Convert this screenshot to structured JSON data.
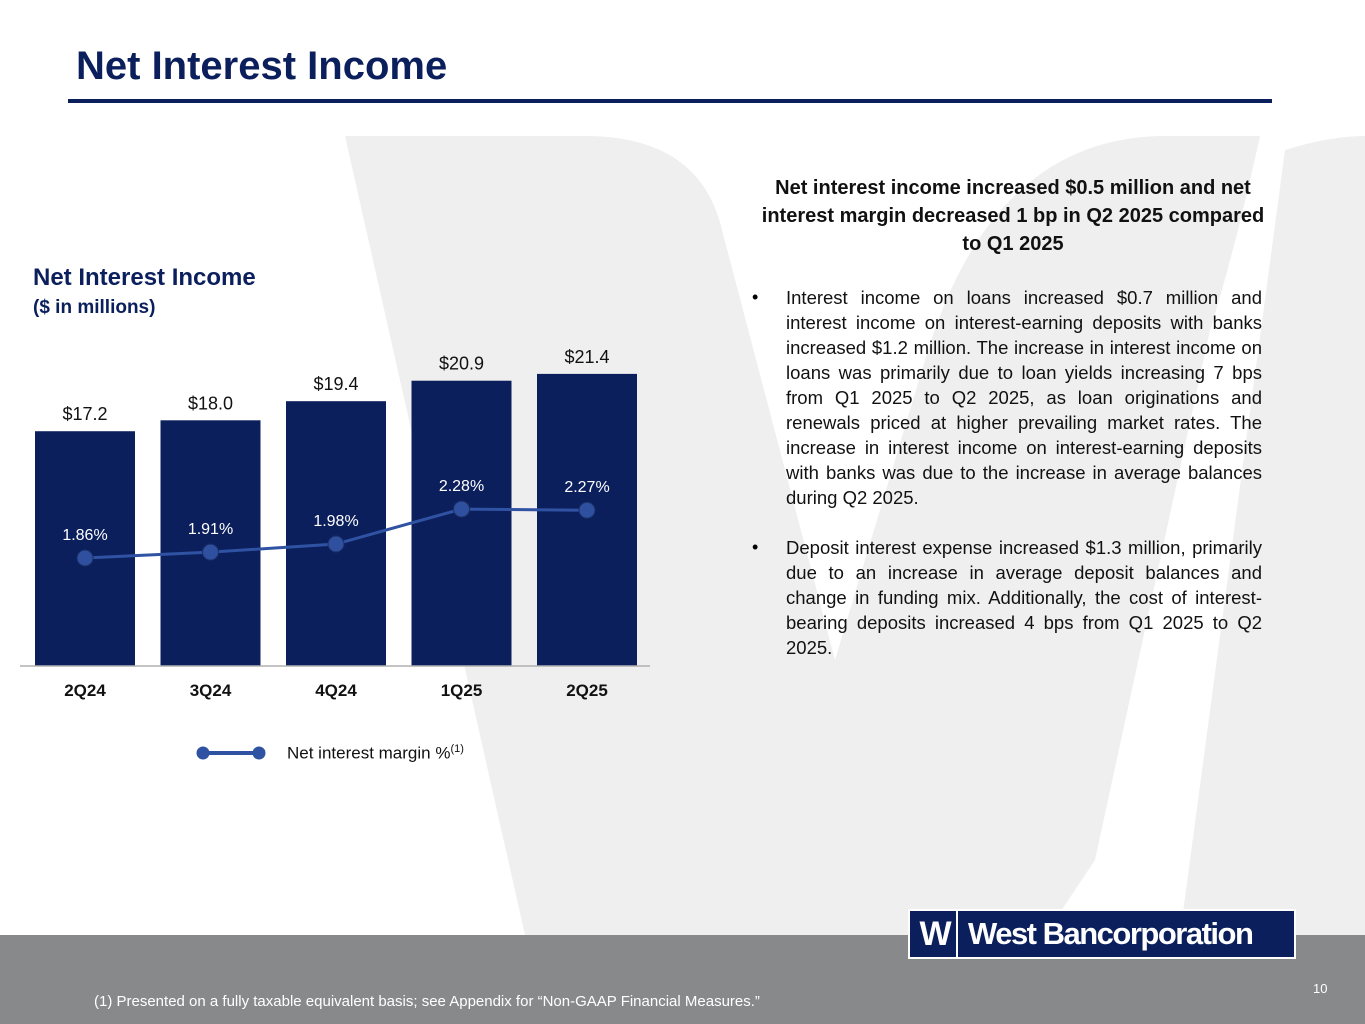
{
  "slide": {
    "title": "Net Interest Income",
    "chart_heading": "Net Interest Income",
    "chart_subheading": "($ in millions)",
    "summary_heading": "Net interest income increased $0.5 million and net interest margin decreased 1 bp in Q2 2025 compared to Q1 2025",
    "bullets": [
      "Interest income on loans increased $0.7 million and interest income on interest-earning deposits with banks increased $1.2 million. The increase in interest income on loans was primarily due to loan yields increasing 7 bps from Q1 2025 to Q2 2025, as loan originations and renewals priced at higher prevailing market rates. The increase in interest income on interest-earning deposits with banks was due to the increase in average balances during Q2 2025.",
      "Deposit interest expense increased $1.3 million, primarily due to an increase in average deposit balances and change in funding mix. Additionally, the cost of interest-bearing deposits increased 4 bps from Q1 2025 to Q2 2025."
    ],
    "bullet_glyph": "•",
    "footnote": "(1) Presented on a fully taxable equivalent basis; see Appendix for “Non-GAAP Financial Measures.”",
    "page_number": "10",
    "logo": {
      "mark": "W",
      "text": "West Bancorporation"
    }
  },
  "legend": {
    "label": "Net interest margin %",
    "superscript": "(1)"
  },
  "colors": {
    "bar": "#0b1f5c",
    "line": "#2f52a3",
    "line_marker": "#2f4f9f",
    "title": "#0b1f5c",
    "footer": "#88898b",
    "watermark": "#efefef"
  },
  "chart_data": {
    "type": "bar",
    "categories": [
      "2Q24",
      "3Q24",
      "4Q24",
      "1Q25",
      "2Q25"
    ],
    "series": [
      {
        "values": [
          17.2,
          18.0,
          19.4,
          20.9,
          21.4
        ],
        "labels": [
          "$17.2",
          "$18.0",
          "$19.4",
          "$20.9",
          "$21.4"
        ]
      },
      {
        "name": "Net interest margin %",
        "type": "line",
        "values": [
          1.86,
          1.91,
          1.98,
          2.28,
          2.27
        ],
        "labels": [
          "1.86%",
          "1.91%",
          "1.98%",
          "2.28%",
          "2.27%"
        ]
      }
    ],
    "legend": "bottom",
    "grid": false
  }
}
